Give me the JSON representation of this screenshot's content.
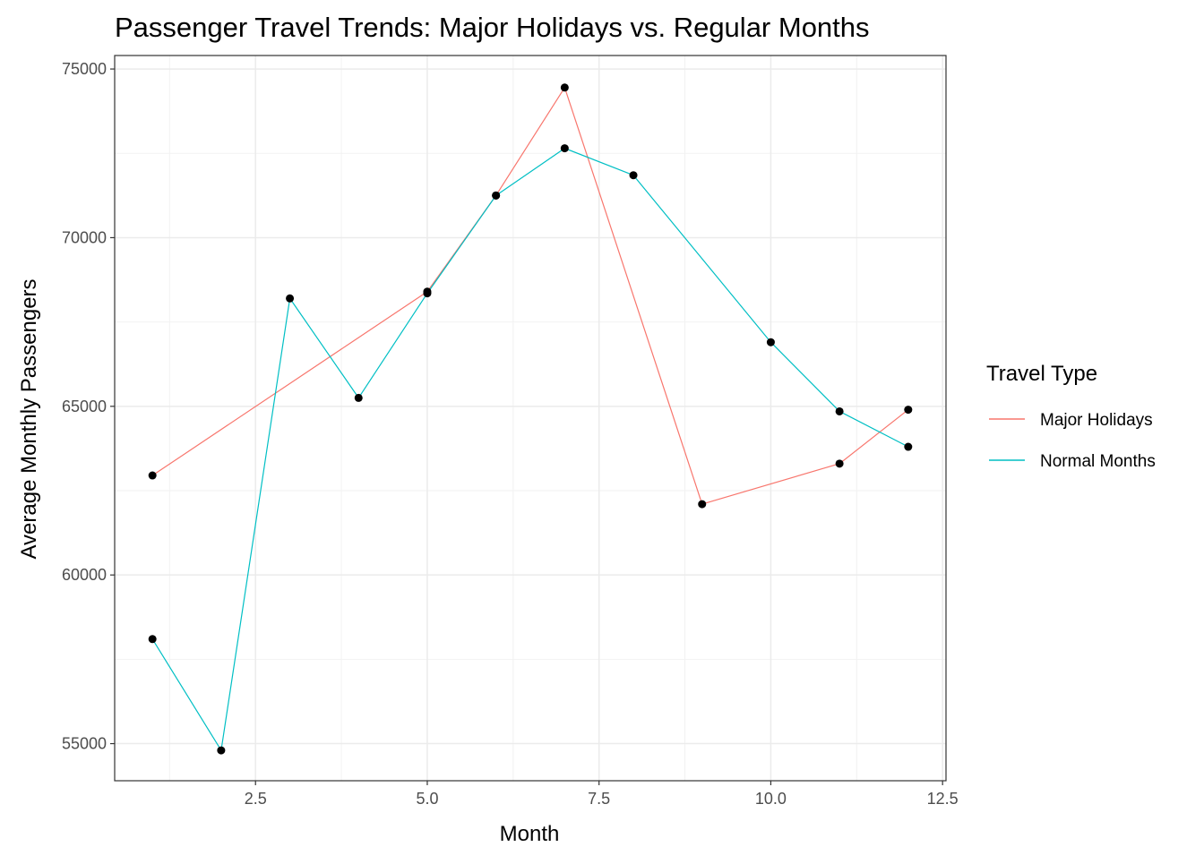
{
  "chart_data": {
    "type": "line",
    "title": "Passenger Travel Trends: Major Holidays vs. Regular Months",
    "xlabel": "Month",
    "ylabel": "Average Monthly Passengers",
    "xlim": [
      0.45,
      12.55
    ],
    "ylim": [
      53900,
      75400
    ],
    "x_ticks": [
      2.5,
      5.0,
      7.5,
      10.0,
      12.5
    ],
    "x_tick_labels": [
      "2.5",
      "5.0",
      "7.5",
      "10.0",
      "12.5"
    ],
    "y_ticks": [
      55000,
      60000,
      65000,
      70000,
      75000
    ],
    "y_tick_labels": [
      "55000",
      "60000",
      "65000",
      "70000",
      "75000"
    ],
    "grid": true,
    "legend": {
      "title": "Travel Type",
      "placement": "right",
      "entries": [
        "Major Holidays",
        "Normal Months"
      ]
    },
    "series": [
      {
        "name": "Major Holidays",
        "color": "#F8766D",
        "x": [
          1,
          5,
          6,
          7,
          9,
          11,
          12
        ],
        "y": [
          62950,
          68400,
          71250,
          74450,
          62100,
          63300,
          64900
        ]
      },
      {
        "name": "Normal Months",
        "color": "#00BFC4",
        "x": [
          1,
          2,
          3,
          4,
          5,
          6,
          7,
          8,
          10,
          11,
          12
        ],
        "y": [
          58100,
          54800,
          68200,
          65250,
          68350,
          71250,
          72650,
          71850,
          66900,
          64850,
          63800
        ]
      }
    ],
    "point_color": "#000000"
  }
}
